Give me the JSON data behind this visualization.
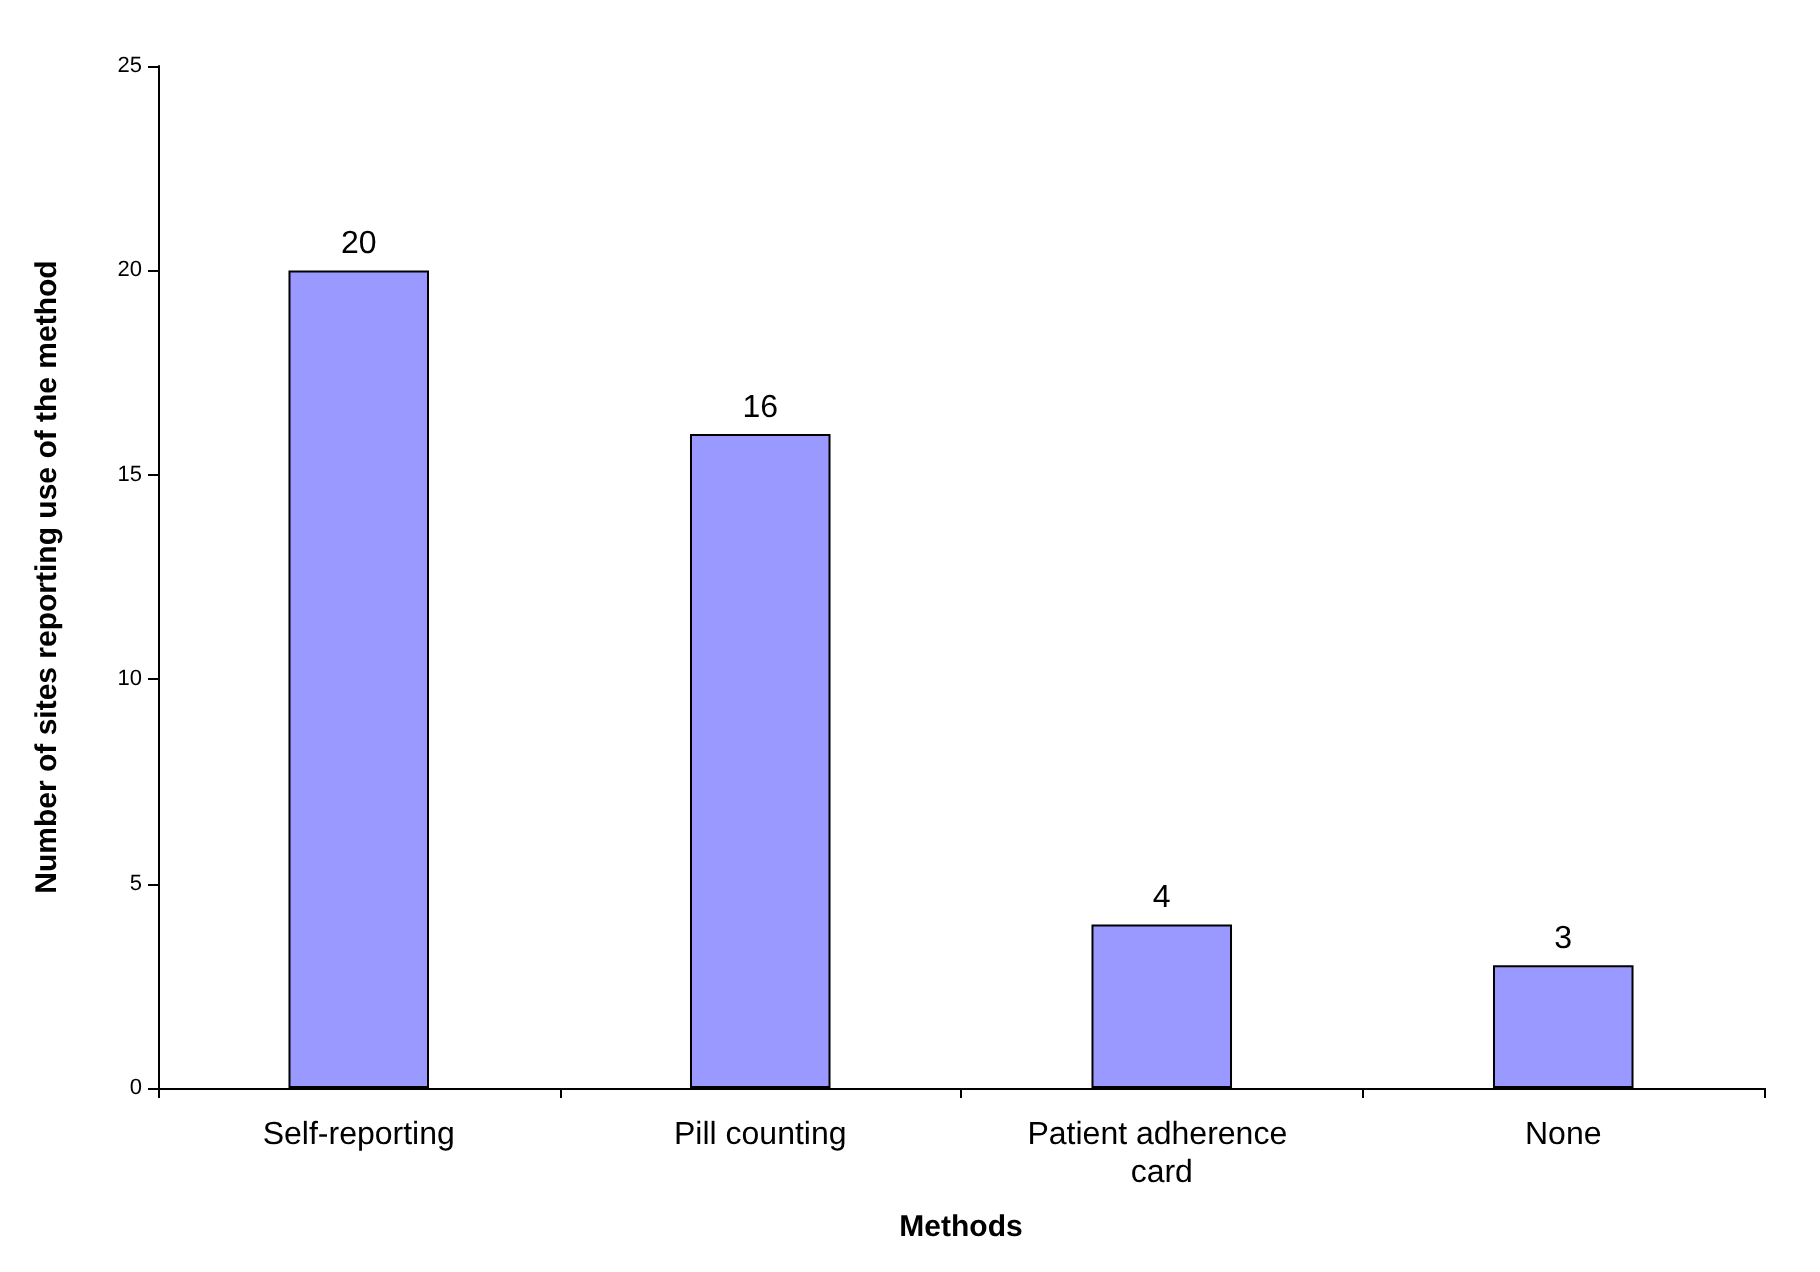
{
  "chart_data": {
    "type": "bar",
    "xlabel": "Methods",
    "ylabel": "Number of sites reporting use of the method",
    "categories": [
      "Self-reporting",
      "Pill counting",
      "Patient adherence card",
      "None"
    ],
    "values": [
      20,
      16,
      4,
      3
    ],
    "color": "#9999ff",
    "ylim": [
      0,
      25
    ],
    "yticks": [
      0,
      5,
      10,
      15,
      20,
      25
    ],
    "grid": false,
    "data_labels": true
  }
}
